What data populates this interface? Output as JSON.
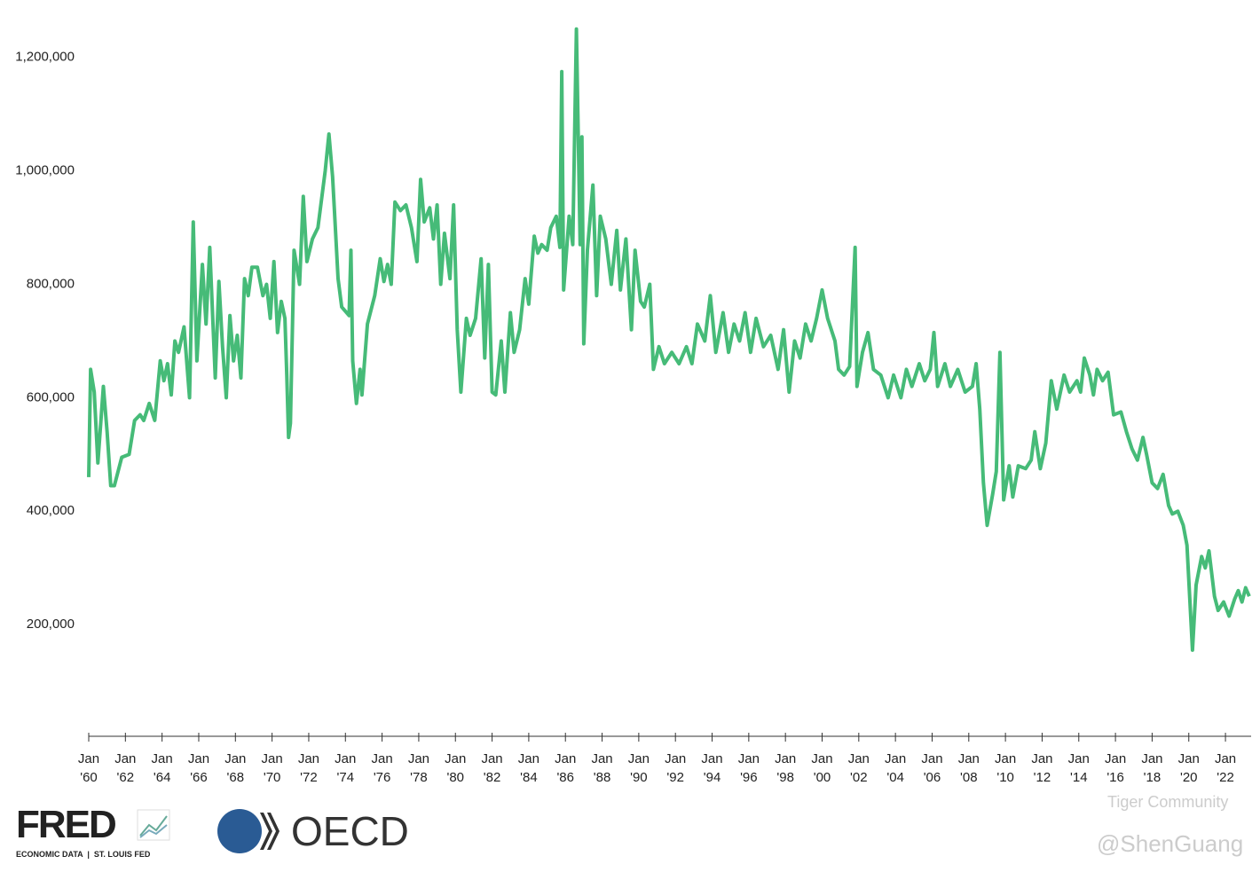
{
  "chart_data": {
    "type": "line",
    "color": "#46bb78",
    "x": [
      1960.0,
      1960.1,
      1960.3,
      1960.5,
      1960.8,
      1961.0,
      1961.2,
      1961.4,
      1961.8,
      1962.2,
      1962.5,
      1962.8,
      1963.0,
      1963.3,
      1963.6,
      1963.9,
      1964.1,
      1964.3,
      1964.5,
      1964.7,
      1964.9,
      1965.2,
      1965.5,
      1965.7,
      1965.9,
      1966.2,
      1966.4,
      1966.6,
      1966.9,
      1967.1,
      1967.3,
      1967.5,
      1967.7,
      1967.9,
      1968.1,
      1968.3,
      1968.5,
      1968.7,
      1968.9,
      1969.2,
      1969.5,
      1969.7,
      1969.9,
      1970.1,
      1970.3,
      1970.5,
      1970.7,
      1970.8,
      1970.9,
      1971.0,
      1971.2,
      1971.5,
      1971.7,
      1971.9,
      1972.2,
      1972.5,
      1972.9,
      1973.1,
      1973.3,
      1973.4,
      1973.6,
      1973.8,
      1974.2,
      1974.3,
      1974.4,
      1974.6,
      1974.8,
      1974.9,
      1975.2,
      1975.6,
      1975.9,
      1976.1,
      1976.3,
      1976.5,
      1976.7,
      1977.0,
      1977.3,
      1977.6,
      1977.9,
      1978.1,
      1978.3,
      1978.6,
      1978.8,
      1979.0,
      1979.2,
      1979.4,
      1979.7,
      1979.9,
      1980.1,
      1980.3,
      1980.6,
      1980.8,
      1981.1,
      1981.4,
      1981.6,
      1981.8,
      1982.0,
      1982.2,
      1982.5,
      1982.7,
      1983.0,
      1983.2,
      1983.5,
      1983.8,
      1984.0,
      1984.3,
      1984.5,
      1984.7,
      1985.0,
      1985.2,
      1985.5,
      1985.7,
      1985.8,
      1985.9,
      1986.2,
      1986.4,
      1986.6,
      1986.8,
      1986.9,
      1987.0,
      1987.2,
      1987.5,
      1987.7,
      1987.9,
      1988.2,
      1988.5,
      1988.8,
      1989.0,
      1989.3,
      1989.6,
      1989.8,
      1990.1,
      1990.3,
      1990.6,
      1990.8,
      1991.1,
      1991.4,
      1991.8,
      1992.2,
      1992.6,
      1992.9,
      1993.2,
      1993.6,
      1993.9,
      1994.2,
      1994.6,
      1994.9,
      1995.2,
      1995.5,
      1995.8,
      1996.1,
      1996.4,
      1996.8,
      1997.2,
      1997.6,
      1997.9,
      1998.2,
      1998.5,
      1998.8,
      1999.1,
      1999.4,
      1999.7,
      2000.0,
      2000.3,
      2000.7,
      2000.9,
      2001.2,
      2001.5,
      2001.8,
      2001.9,
      2002.2,
      2002.5,
      2002.8,
      2003.2,
      2003.6,
      2003.9,
      2004.3,
      2004.6,
      2004.9,
      2005.3,
      2005.6,
      2005.9,
      2006.1,
      2006.3,
      2006.7,
      2007.0,
      2007.4,
      2007.8,
      2008.2,
      2008.4,
      2008.6,
      2008.8,
      2009.0,
      2009.3,
      2009.5,
      2009.7,
      2009.9,
      2010.2,
      2010.4,
      2010.7,
      2011.1,
      2011.4,
      2011.6,
      2011.9,
      2012.2,
      2012.5,
      2012.8,
      2013.2,
      2013.5,
      2013.9,
      2014.1,
      2014.3,
      2014.6,
      2014.8,
      2015.0,
      2015.3,
      2015.6,
      2015.9,
      2016.3,
      2016.6,
      2016.9,
      2017.2,
      2017.5,
      2017.7,
      2018.0,
      2018.3,
      2018.6,
      2018.9,
      2019.1,
      2019.4,
      2019.7,
      2019.9,
      2020.2,
      2020.4,
      2020.7,
      2020.9,
      2021.1,
      2021.4,
      2021.6,
      2021.9,
      2022.2,
      2022.5,
      2022.7,
      2022.9,
      2023.1,
      2023.3
    ],
    "values": [
      460000,
      650000,
      610000,
      485000,
      620000,
      540000,
      445000,
      445000,
      495000,
      500000,
      560000,
      570000,
      560000,
      590000,
      560000,
      665000,
      630000,
      660000,
      605000,
      700000,
      680000,
      725000,
      600000,
      910000,
      665000,
      835000,
      730000,
      865000,
      635000,
      805000,
      690000,
      600000,
      745000,
      665000,
      710000,
      635000,
      810000,
      780000,
      830000,
      830000,
      780000,
      800000,
      740000,
      840000,
      715000,
      770000,
      740000,
      640000,
      530000,
      555000,
      860000,
      800000,
      955000,
      840000,
      880000,
      900000,
      1000000,
      1065000,
      990000,
      930000,
      810000,
      760000,
      745000,
      860000,
      665000,
      590000,
      650000,
      605000,
      730000,
      780000,
      845000,
      805000,
      835000,
      800000,
      945000,
      930000,
      940000,
      900000,
      840000,
      985000,
      910000,
      935000,
      880000,
      940000,
      800000,
      890000,
      810000,
      940000,
      720000,
      610000,
      740000,
      710000,
      740000,
      845000,
      670000,
      835000,
      610000,
      605000,
      700000,
      610000,
      750000,
      680000,
      720000,
      810000,
      765000,
      885000,
      855000,
      870000,
      860000,
      900000,
      920000,
      865000,
      1175000,
      790000,
      920000,
      870000,
      1250000,
      870000,
      1060000,
      695000,
      860000,
      975000,
      780000,
      920000,
      880000,
      800000,
      895000,
      790000,
      880000,
      720000,
      860000,
      770000,
      760000,
      800000,
      650000,
      690000,
      660000,
      680000,
      660000,
      690000,
      660000,
      730000,
      700000,
      780000,
      680000,
      750000,
      680000,
      730000,
      700000,
      750000,
      680000,
      740000,
      690000,
      710000,
      650000,
      720000,
      610000,
      700000,
      670000,
      730000,
      700000,
      740000,
      790000,
      740000,
      700000,
      650000,
      640000,
      655000,
      865000,
      620000,
      680000,
      715000,
      650000,
      640000,
      600000,
      640000,
      600000,
      650000,
      620000,
      660000,
      630000,
      650000,
      715000,
      620000,
      660000,
      620000,
      650000,
      610000,
      620000,
      660000,
      580000,
      450000,
      375000,
      430000,
      470000,
      680000,
      420000,
      480000,
      425000,
      480000,
      475000,
      490000,
      540000,
      475000,
      520000,
      630000,
      580000,
      640000,
      610000,
      630000,
      610000,
      670000,
      640000,
      605000,
      650000,
      630000,
      645000,
      570000,
      575000,
      540000,
      510000,
      490000,
      530000,
      500000,
      450000,
      440000,
      465000,
      410000,
      395000,
      400000,
      375000,
      340000,
      155000,
      270000,
      320000,
      300000,
      330000,
      250000,
      225000,
      240000,
      215000,
      245000,
      260000,
      240000,
      265000,
      250000
    ],
    "xlim": [
      1960,
      2023.4
    ],
    "ylim": [
      0,
      1270000
    ],
    "yticks": [
      {
        "value": 200000,
        "label": "200,000"
      },
      {
        "value": 400000,
        "label": "400,000"
      },
      {
        "value": 600000,
        "label": "600,000"
      },
      {
        "value": 800000,
        "label": "800,000"
      },
      {
        "value": 1000000,
        "label": "1,000,000"
      },
      {
        "value": 1200000,
        "label": "1,200,000"
      }
    ],
    "xticks": [
      {
        "value": 1960,
        "label": "Jan '60"
      },
      {
        "value": 1962,
        "label": "Jan '62"
      },
      {
        "value": 1964,
        "label": "Jan '64"
      },
      {
        "value": 1966,
        "label": "Jan '66"
      },
      {
        "value": 1968,
        "label": "Jan '68"
      },
      {
        "value": 1970,
        "label": "Jan '70"
      },
      {
        "value": 1972,
        "label": "Jan '72"
      },
      {
        "value": 1974,
        "label": "Jan '74"
      },
      {
        "value": 1976,
        "label": "Jan '76"
      },
      {
        "value": 1978,
        "label": "Jan '78"
      },
      {
        "value": 1980,
        "label": "Jan '80"
      },
      {
        "value": 1982,
        "label": "Jan '82"
      },
      {
        "value": 1984,
        "label": "Jan '84"
      },
      {
        "value": 1986,
        "label": "Jan '86"
      },
      {
        "value": 1988,
        "label": "Jan '88"
      },
      {
        "value": 1990,
        "label": "Jan '90"
      },
      {
        "value": 1992,
        "label": "Jan '92"
      },
      {
        "value": 1994,
        "label": "Jan '94"
      },
      {
        "value": 1996,
        "label": "Jan '96"
      },
      {
        "value": 1998,
        "label": "Jan '98"
      },
      {
        "value": 2000,
        "label": "Jan '00"
      },
      {
        "value": 2002,
        "label": "Jan '02"
      },
      {
        "value": 2004,
        "label": "Jan '04"
      },
      {
        "value": 2006,
        "label": "Jan '06"
      },
      {
        "value": 2008,
        "label": "Jan '08"
      },
      {
        "value": 2010,
        "label": "Jan '10"
      },
      {
        "value": 2012,
        "label": "Jan '12"
      },
      {
        "value": 2014,
        "label": "Jan '14"
      },
      {
        "value": 2016,
        "label": "Jan '16"
      },
      {
        "value": 2018,
        "label": "Jan '18"
      },
      {
        "value": 2020,
        "label": "Jan '20"
      },
      {
        "value": 2022,
        "label": "Jan '22"
      }
    ]
  },
  "footer": {
    "fred": "FRED",
    "fred_sub": "ECONOMIC DATA  |  ST. LOUIS FED",
    "oecd": "OECD",
    "watermark": "Tiger Community",
    "author": "@ShenGuang"
  }
}
